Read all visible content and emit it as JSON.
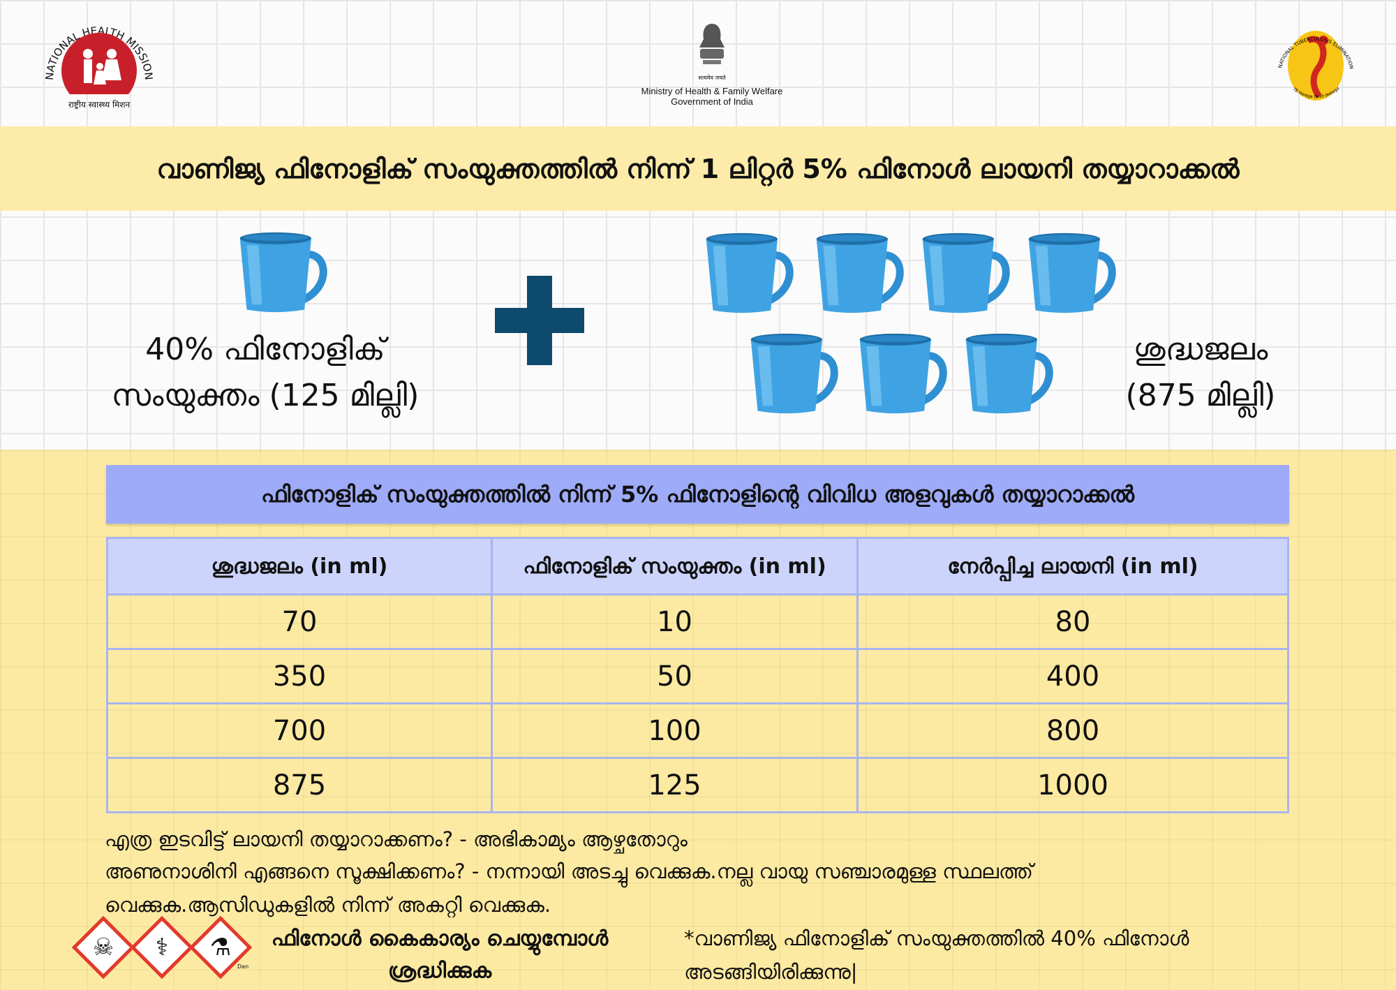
{
  "logos": {
    "nhm": {
      "arc_text": "NATIONAL HEALTH MISSION",
      "hindi": "राष्ट्रीय स्वास्थ्य मिशन",
      "color": "#c8202a"
    },
    "ministry": {
      "motto": "सत्यमेव जयते",
      "line1": "Ministry of Health & Family Welfare",
      "line2": "Government of India"
    },
    "ntep": {
      "arc_text": "NATIONAL TUBERCULOSIS ELIMINATION PROGRAMME",
      "tagline": "TB Harega Desh Jeetega",
      "color": "#f7c515"
    }
  },
  "title": "വാണിജ്യ ഫിനോളിക് സംയുക്തത്തിൽ നിന്ന് 1 ലിറ്റർ 5% ഫിനോൾ ലായനി തയ്യാറാക്കൽ",
  "mix": {
    "left_label": "40% ഫിനോളിക് സംയുക്തം (125 മില്ലി)",
    "right_label": "ശുദ്ധജലം (875 മില്ലി)",
    "left_cups": 1,
    "right_cups": 7,
    "plus_color": "#0d4a6e",
    "cup_color": "#3a9ee0"
  },
  "table": {
    "title": "ഫിനോളിക് സംയുക്തത്തിൽ നിന്ന് 5% ഫിനോളിന്റെ വിവിധ അളവുകൾ തയ്യാറാക്കൽ",
    "headers": [
      "ശുദ്ധജലം (in ml)",
      "ഫിനോളിക് സംയുക്തം (in ml)",
      "നേർപ്പിച്ച ലായനി (in ml)"
    ],
    "rows": [
      [
        "70",
        "10",
        "80"
      ],
      [
        "350",
        "50",
        "400"
      ],
      [
        "700",
        "100",
        "800"
      ],
      [
        "875",
        "125",
        "1000"
      ]
    ]
  },
  "notes": [
    "എത്ര ഇടവിട്ട് ലായനി തയ്യാറാക്കണം? - അഭികാമ്യം ആഴ്ചതോറും",
    "അണുനാശിനി എങ്ങനെ സൂക്ഷിക്കണം? - നന്നായി അടച്ചു വെക്കുക.നല്ല വായു സഞ്ചാരമുള്ള സ്ഥലത്ത്",
    "വെക്കുക.ആസിഡുകളിൽ നിന്ന് അകറ്റി വെക്കുക."
  ],
  "caution": {
    "line1": "ഫിനോൾ കൈകാര്യം ചെയ്യുമ്പോൾ",
    "line2": "ശ്രദ്ധിക്കുക",
    "hazard_icons": [
      "skull-crossbones",
      "health-hazard",
      "corrosive"
    ],
    "small_text": "Dan"
  },
  "footnote": {
    "line1": "*വാണിജ്യ ഫിനോളിക് സംയുക്തത്തിൽ 40% ഫിനോൾ",
    "line2": "അടങ്ങിയിരിക്കുന്നു|"
  }
}
